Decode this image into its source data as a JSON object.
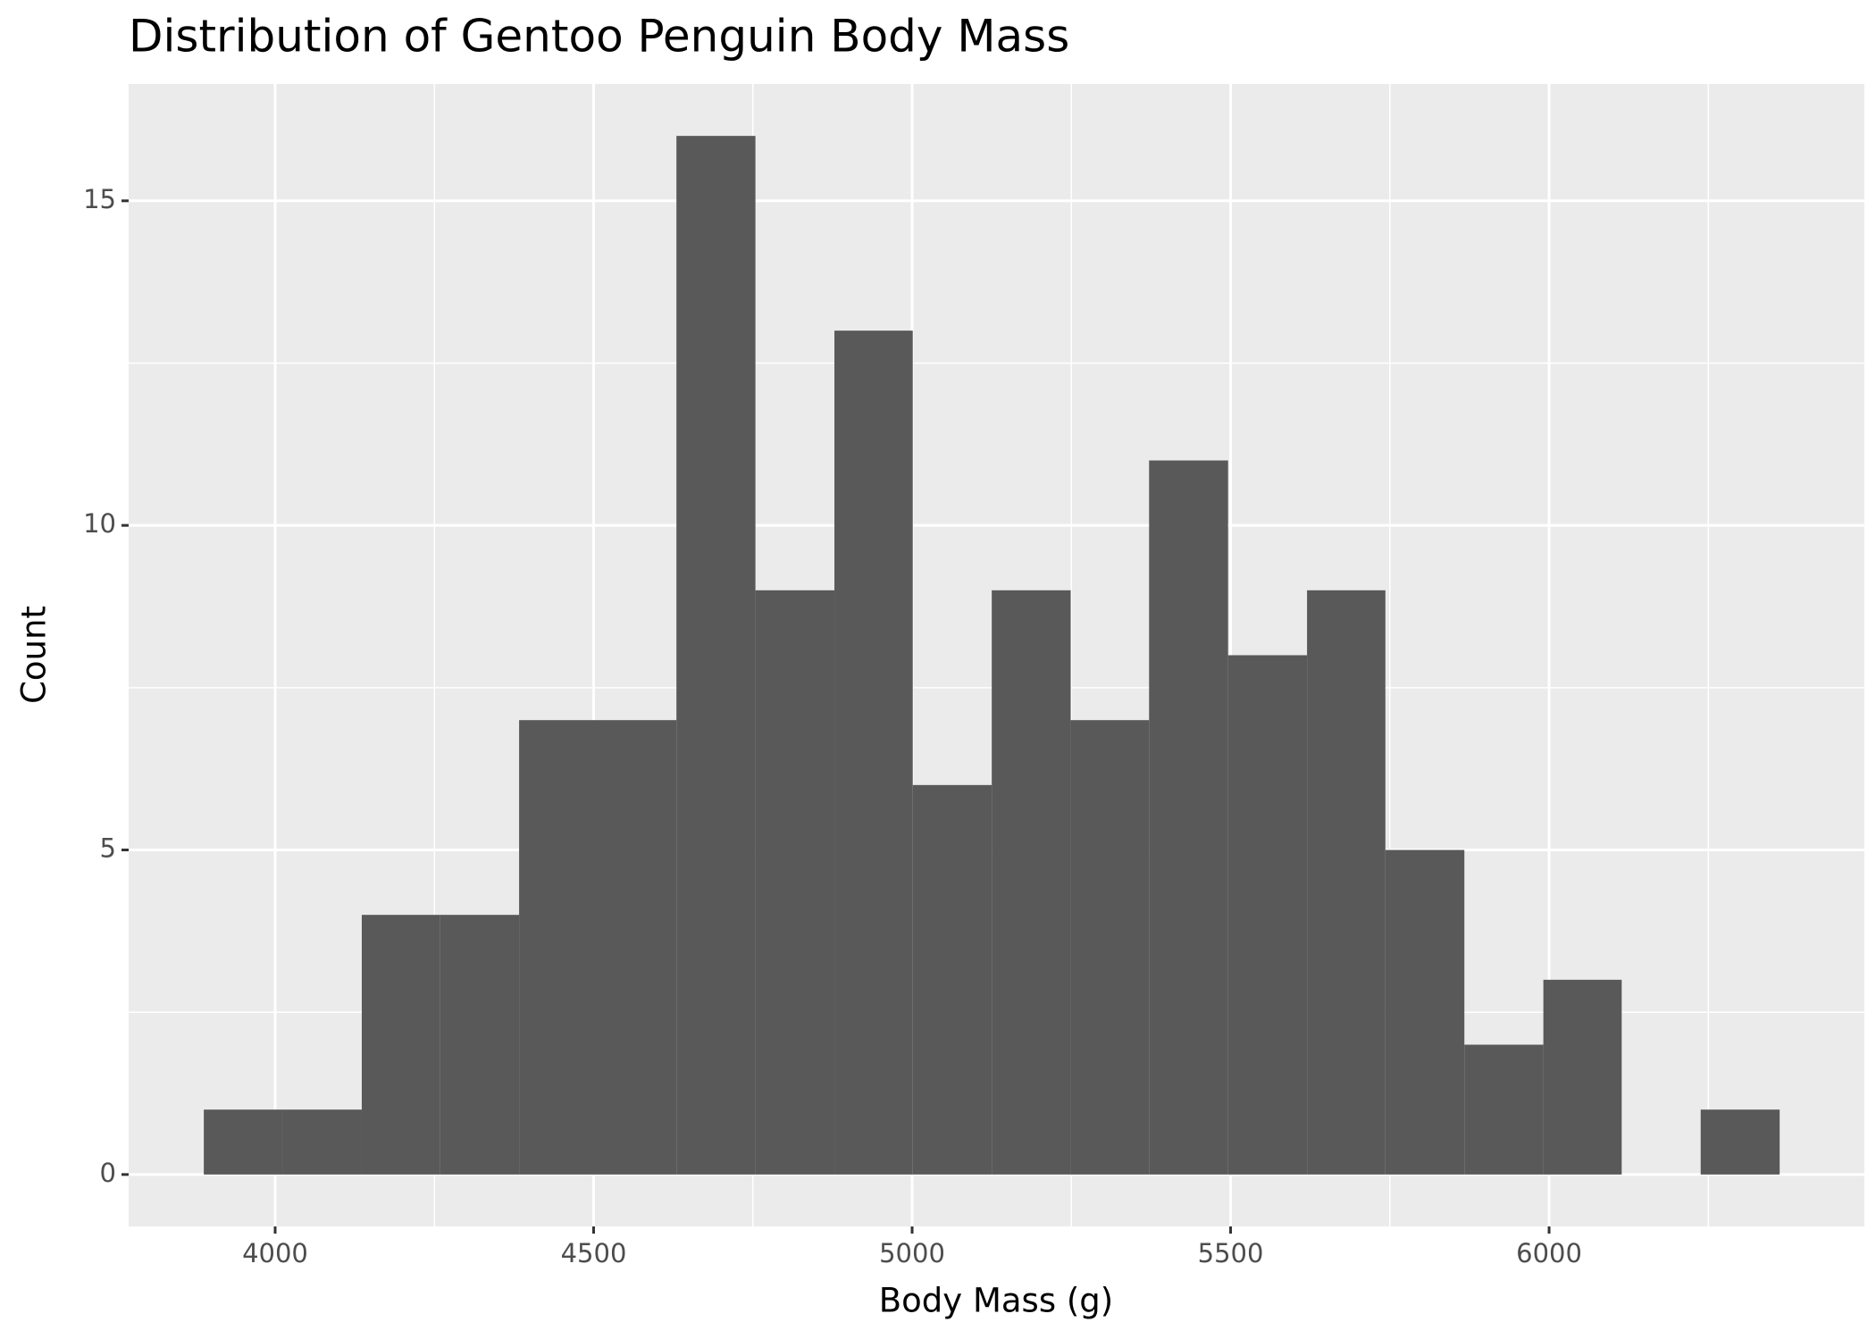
{
  "chart_data": {
    "type": "histogram",
    "title": "Distribution of Gentoo Penguin Body Mass",
    "x_label": "Body Mass (g)",
    "y_label": "Count",
    "bins": [
      3888,
      4012,
      4136,
      4259,
      4383,
      4507,
      4630,
      4754,
      4878,
      5001,
      5125,
      5249,
      5372,
      5496,
      5620,
      5743,
      5867,
      5991,
      6114,
      6238,
      6362
    ],
    "values": [
      1,
      1,
      4,
      4,
      7,
      7,
      16,
      9,
      13,
      6,
      9,
      7,
      11,
      8,
      9,
      5,
      2,
      3,
      0,
      1
    ],
    "color": "#595959",
    "xlim": [
      3770,
      6495
    ],
    "xticks": [
      4000,
      4500,
      5000,
      5500,
      6000
    ],
    "ylim": [
      -0.8,
      16.8
    ],
    "yticks": [
      0,
      5,
      10,
      15
    ],
    "grid": true
  }
}
